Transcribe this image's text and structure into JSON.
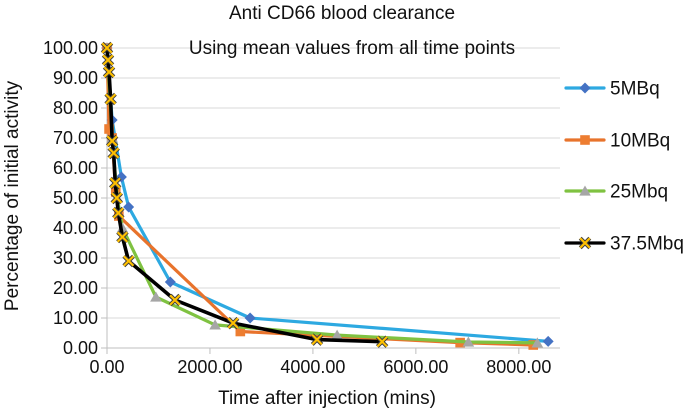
{
  "figure": {
    "title": "Anti CD66 blood clearance",
    "subtitle": "Using mean values from all time points",
    "x_axis_title": "Time after injection (mins)",
    "y_axis_title": "Percentage of initial activity"
  },
  "colors": {
    "gridline": "#d9d9d9",
    "axis_line": "#bfbfbf",
    "text": "#111111",
    "background": "#ffffff",
    "series_5MBq_line": "#2da9e1",
    "series_5MBq_marker": "#4472c4",
    "series_10MBq_line": "#e8732c",
    "series_10MBq_marker": "#ed7d31",
    "series_25Mbq_line": "#7fc241",
    "series_25Mbq_marker": "#a6a6a6",
    "series_37_5Mbq_line": "#000000",
    "series_37_5Mbq_marker": "#ffc000"
  },
  "chart_data": {
    "type": "line",
    "title": "Anti CD66 blood clearance",
    "subtitle": "Using mean values from all time points",
    "xlabel": "Time after injection (mins)",
    "ylabel": "Percentage of initial activity",
    "xlim": [
      0,
      8800
    ],
    "ylim": [
      0,
      100
    ],
    "grid": true,
    "legend_position": "right",
    "x_tick_values": [
      0,
      2000,
      4000,
      6000,
      8000
    ],
    "x_tick_labels": [
      "0.00",
      "2000.00",
      "4000.00",
      "6000.00",
      "8000.00"
    ],
    "y_tick_values": [
      100,
      90,
      80,
      70,
      60,
      50,
      40,
      30,
      20,
      10,
      0
    ],
    "y_tick_labels": [
      "100.00",
      "90.00",
      "80.00",
      "70.00",
      "60.00",
      "50.00",
      "40.00",
      "30.00",
      "20.00",
      "10.00",
      "0.00"
    ],
    "series": [
      {
        "name": "5MBq",
        "line_color": "#2da9e1",
        "marker": "diamond",
        "marker_color": "#4472c4",
        "points": [
          [
            0,
            100
          ],
          [
            100,
            76
          ],
          [
            280,
            57
          ],
          [
            420,
            47
          ],
          [
            1230,
            22
          ],
          [
            2780,
            10
          ],
          [
            8570,
            2.2
          ]
        ]
      },
      {
        "name": "10MBq",
        "line_color": "#e8732c",
        "marker": "square",
        "marker_color": "#ed7d31",
        "points": [
          [
            0,
            100
          ],
          [
            40,
            73
          ],
          [
            100,
            70
          ],
          [
            170,
            52
          ],
          [
            230,
            44
          ],
          [
            2590,
            5.5
          ],
          [
            6860,
            1.8
          ],
          [
            8280,
            1.0
          ]
        ]
      },
      {
        "name": "25Mbq",
        "line_color": "#7fc241",
        "marker": "triangle",
        "marker_color": "#a6a6a6",
        "points": [
          [
            0,
            100
          ],
          [
            100,
            70
          ],
          [
            200,
            50
          ],
          [
            300,
            40
          ],
          [
            950,
            17
          ],
          [
            2100,
            7.7
          ],
          [
            4470,
            4.3
          ],
          [
            7020,
            2.0
          ],
          [
            8360,
            1.7
          ]
        ]
      },
      {
        "name": "37.5Mbq",
        "line_color": "#000000",
        "marker": "x",
        "marker_color": "#ffc000",
        "points": [
          [
            0,
            100
          ],
          [
            20,
            96
          ],
          [
            40,
            92
          ],
          [
            70,
            83
          ],
          [
            100,
            69
          ],
          [
            130,
            65
          ],
          [
            160,
            55
          ],
          [
            190,
            50
          ],
          [
            220,
            45
          ],
          [
            300,
            37
          ],
          [
            420,
            29
          ],
          [
            1320,
            16
          ],
          [
            2450,
            8.3
          ],
          [
            4080,
            2.8
          ],
          [
            5345,
            2.1
          ]
        ]
      }
    ]
  }
}
